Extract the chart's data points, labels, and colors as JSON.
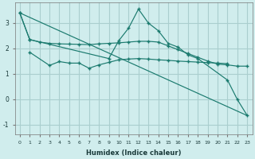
{
  "xlabel": "Humidex (Indice chaleur)",
  "background_color": "#d0eded",
  "grid_color": "#aacece",
  "line_color": "#1a7a6e",
  "series1_x": [
    0,
    1,
    2,
    3,
    4,
    5,
    6,
    7,
    8,
    9,
    10,
    11,
    12,
    13,
    14,
    15,
    16,
    17,
    18,
    19,
    20,
    21,
    22,
    23
  ],
  "series1_y": [
    3.4,
    2.35,
    2.25,
    2.2,
    2.18,
    2.17,
    2.16,
    2.15,
    2.18,
    2.2,
    2.22,
    2.25,
    2.28,
    2.28,
    2.25,
    2.1,
    1.95,
    1.8,
    1.65,
    1.5,
    1.38,
    1.35,
    1.3,
    1.3
  ],
  "series2_x": [
    1,
    3,
    4,
    5,
    6,
    7,
    8,
    9,
    10,
    11,
    12,
    13,
    14,
    15,
    16,
    17,
    18,
    19,
    20,
    21
  ],
  "series2_y": [
    1.85,
    1.33,
    1.48,
    1.42,
    1.42,
    1.22,
    1.35,
    1.45,
    1.55,
    1.58,
    1.6,
    1.58,
    1.55,
    1.53,
    1.5,
    1.48,
    1.46,
    1.44,
    1.42,
    1.4
  ],
  "series3_x": [
    0,
    1,
    9,
    10,
    11,
    12,
    13,
    14,
    15,
    16,
    17,
    18,
    21,
    22,
    23
  ],
  "series3_y": [
    3.4,
    2.35,
    1.6,
    2.3,
    2.8,
    3.55,
    3.0,
    2.7,
    2.2,
    2.05,
    1.75,
    1.6,
    0.75,
    -0.02,
    -0.65
  ],
  "series4_x": [
    0,
    23
  ],
  "series4_y": [
    3.4,
    -0.65
  ],
  "ylim": [
    -1.4,
    3.8
  ],
  "yticks": [
    -1,
    0,
    1,
    2,
    3
  ],
  "xticks": [
    0,
    1,
    2,
    3,
    4,
    5,
    6,
    7,
    8,
    9,
    10,
    11,
    12,
    13,
    14,
    15,
    16,
    17,
    18,
    19,
    20,
    21,
    22,
    23
  ]
}
